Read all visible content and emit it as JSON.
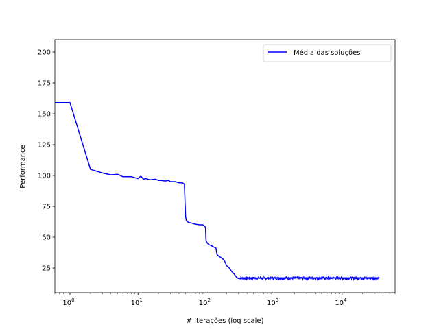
{
  "chart_data": {
    "type": "line",
    "xlabel": "# Iterações (log scale)",
    "ylabel": "Performance",
    "xscale": "log",
    "xlim": [
      0.6,
      60000
    ],
    "ylim": [
      5,
      210
    ],
    "grid": false,
    "legend_position": "top-right",
    "yticks": [
      25,
      50,
      75,
      100,
      125,
      150,
      175,
      200
    ],
    "xticks": [
      {
        "value": 1,
        "mantissa": "10",
        "exp": "0"
      },
      {
        "value": 10,
        "mantissa": "10",
        "exp": "1"
      },
      {
        "value": 100,
        "mantissa": "10",
        "exp": "2"
      },
      {
        "value": 1000,
        "mantissa": "10",
        "exp": "3"
      },
      {
        "value": 10000,
        "mantissa": "10",
        "exp": "4"
      }
    ],
    "series": [
      {
        "name": "Média das soluções",
        "color": "#0000ff",
        "x": [
          0.6,
          1,
          2,
          3,
          4,
          5,
          6,
          7,
          8,
          10,
          11,
          12,
          13,
          15,
          18,
          20,
          22,
          25,
          28,
          30,
          35,
          40,
          45,
          48,
          49,
          50,
          51,
          52,
          55,
          60,
          70,
          80,
          90,
          95,
          98,
          100,
          102,
          105,
          110,
          120,
          130,
          140,
          145,
          150,
          160,
          170,
          180,
          190,
          200,
          220,
          240,
          260,
          280,
          300,
          350,
          400,
          500,
          700,
          1000,
          2000,
          5000,
          10000,
          20000,
          35000
        ],
        "y": [
          159,
          159,
          105,
          102,
          100.5,
          101,
          99,
          99,
          99,
          97.5,
          99.5,
          97,
          97.5,
          96.5,
          97,
          96,
          96,
          95.5,
          96,
          95,
          95,
          94,
          94,
          93,
          80,
          67,
          64,
          63,
          62,
          61.5,
          60.5,
          60,
          60,
          59,
          58,
          47,
          46,
          45,
          44,
          43,
          42,
          41,
          36,
          35,
          34,
          33,
          32,
          30,
          27,
          25,
          22,
          20,
          17.5,
          16.5,
          17,
          17,
          16.8,
          16.8,
          17,
          17,
          17,
          17,
          17,
          17
        ]
      }
    ]
  }
}
